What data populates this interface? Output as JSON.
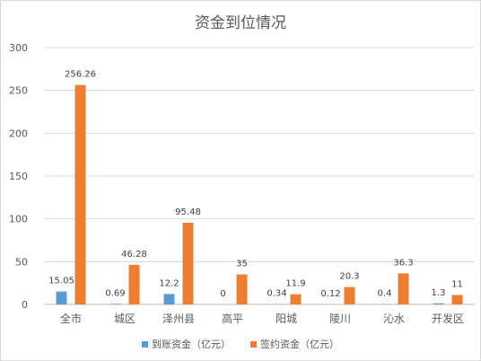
{
  "chart_data": {
    "type": "bar",
    "title": "资金到位情况",
    "categories": [
      "全市",
      "城区",
      "泽州县",
      "高平",
      "阳城",
      "陵川",
      "沁水",
      "开发区"
    ],
    "series": [
      {
        "name": "到账资金（亿元）",
        "color": "#5b9bd5",
        "values": [
          15.05,
          0.69,
          12.2,
          0,
          0.34,
          0.12,
          0.4,
          1.3
        ],
        "labels": [
          "15.05",
          "0.69",
          "12.2",
          "0",
          "0.34",
          "0.12",
          "0.4",
          "1.3"
        ]
      },
      {
        "name": "签约资金（亿元）",
        "color": "#ed7d31",
        "values": [
          256.26,
          46.28,
          95.48,
          35,
          11.9,
          20.3,
          36.3,
          11
        ],
        "labels": [
          "256.26",
          "46.28",
          "95.48",
          "35",
          "11.9",
          "20.3",
          "36.3",
          "11"
        ]
      }
    ],
    "yticks": [
      "0",
      "50",
      "100",
      "150",
      "200",
      "250",
      "300"
    ],
    "ylim": [
      0,
      300
    ],
    "grid": true,
    "legend_position": "bottom"
  }
}
